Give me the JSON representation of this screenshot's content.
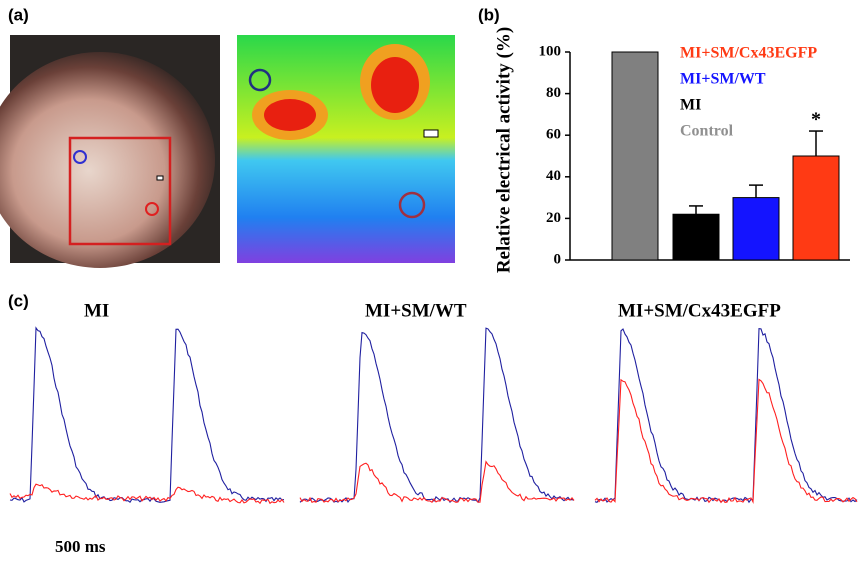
{
  "labels": {
    "a": "(a)",
    "b": "(b)",
    "c": "(c)"
  },
  "chart_data": {
    "type": "bar",
    "ylabel": "Relative electrical activity (%)",
    "categories": [
      null,
      null,
      null,
      null
    ],
    "values": [
      100,
      22,
      30,
      50
    ],
    "errors": [
      0,
      4,
      6,
      12
    ],
    "colors": [
      "#808080",
      "#000000",
      "#1414ff",
      "#ff3a14"
    ],
    "legend": [
      {
        "name": "MI+SM/Cx43EGFP",
        "color": "#ff3a14"
      },
      {
        "name": "MI+SM/WT",
        "color": "#1414ff"
      },
      {
        "name": "MI",
        "color": "#000000"
      },
      {
        "name": "Control",
        "color": "#909090"
      }
    ],
    "annotations": [
      {
        "text": "*"
      }
    ],
    "ylim": [
      0,
      100
    ],
    "yticks": [
      0,
      20,
      40,
      60,
      80,
      100
    ]
  },
  "traces": {
    "titles": [
      "MI",
      "MI+SM/WT",
      "MI+SM/Cx43EGFP"
    ],
    "scale_bar": "500 ms"
  }
}
